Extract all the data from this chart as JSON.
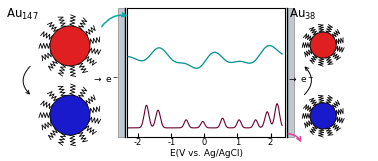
{
  "title_left": "Au$_{147}$",
  "title_right": "Au$_{38}$",
  "xlabel": "E(V vs. Ag/AgCl)",
  "xticks": [
    -2,
    -1,
    0,
    1,
    2
  ],
  "electrode_color": "#c0c8d0",
  "nanoparticle_red_color": "#e02020",
  "nanoparticle_blue_color": "#1a1acd",
  "teal_color": "#009090",
  "purple_color": "#6b0030",
  "arrow_teal_color": "#00aaaa",
  "arrow_pink_color": "#e040a0",
  "background_color": "#ffffff",
  "fig_width": 3.78,
  "fig_height": 1.61,
  "dpi": 100
}
